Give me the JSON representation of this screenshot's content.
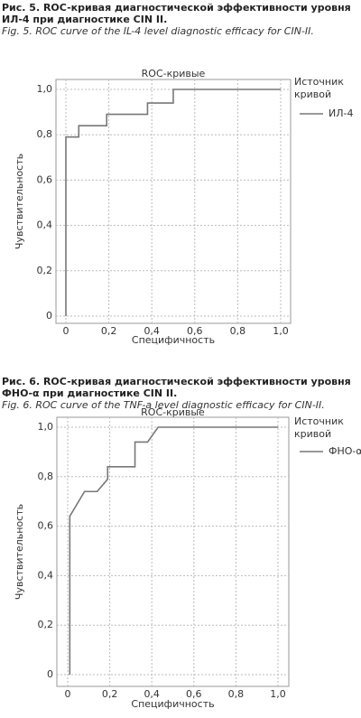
{
  "chart_data": [
    {
      "type": "line",
      "caption_ru": "Рис. 5. ROC-кривая диагностической эффективности уровня ИЛ-4 при диагностике CIN II.",
      "caption_en": "Fig. 5. ROC curve of the IL-4 level diagnostic efficacy for CIN-II.",
      "title": "ROC-кривые",
      "xlabel": "Специфичность",
      "ylabel": "Чувствительность",
      "legend_title": "Источник кривой",
      "xlim": [
        0,
        1
      ],
      "ylim": [
        0,
        1
      ],
      "xticks": [
        0,
        {
          "value": 0.2,
          "label": "0,2"
        },
        {
          "value": 0.4,
          "label": "0,4"
        },
        {
          "value": 0.6,
          "label": "0,6"
        },
        {
          "value": 0.8,
          "label": "0,8"
        },
        {
          "value": 1,
          "label": "1,0"
        }
      ],
      "yticks": [
        0,
        {
          "value": 0.2,
          "label": "0,2"
        },
        {
          "value": 0.4,
          "label": "0,4"
        },
        {
          "value": 0.6,
          "label": "0,6"
        },
        {
          "value": 0.8,
          "label": "0,8"
        },
        {
          "value": 1,
          "label": "1,0"
        }
      ],
      "grid": true,
      "series": [
        {
          "name": "ИЛ-4",
          "color": "#777777",
          "x": [
            0,
            0,
            0.06,
            0.06,
            0.19,
            0.19,
            0.38,
            0.38,
            0.5,
            0.5,
            1
          ],
          "values": [
            0,
            0.79,
            0.79,
            0.84,
            0.84,
            0.89,
            0.89,
            0.94,
            0.94,
            1,
            1
          ]
        }
      ]
    },
    {
      "type": "line",
      "caption_ru": "Рис. 6. ROC-кривая диагностической эффективности уровня ФНО-α при диагностике CIN II.",
      "caption_en": "Fig. 6. ROC curve of the TNF-a level diagnostic efficacy for CIN-II.",
      "title": "ROC-кривые",
      "xlabel": "Специфичность",
      "ylabel": "Чувствительность",
      "legend_title": "Источник кривой",
      "xlim": [
        0,
        1
      ],
      "ylim": [
        0,
        1
      ],
      "xticks": [
        0,
        {
          "value": 0.2,
          "label": "0,2"
        },
        {
          "value": 0.4,
          "label": "0,4"
        },
        {
          "value": 0.6,
          "label": "0,6"
        },
        {
          "value": 0.8,
          "label": "0,8"
        },
        {
          "value": 1,
          "label": "1,0"
        }
      ],
      "yticks": [
        0,
        {
          "value": 0.2,
          "label": "0,2"
        },
        {
          "value": 0.4,
          "label": "0,4"
        },
        {
          "value": 0.6,
          "label": "0,6"
        },
        {
          "value": 0.8,
          "label": "0,8"
        },
        {
          "value": 1,
          "label": "1,0"
        }
      ],
      "grid": true,
      "series": [
        {
          "name": "ФНО-α",
          "color": "#777777",
          "x": [
            0.01,
            0.01,
            0.08,
            0.14,
            0.19,
            0.19,
            0.32,
            0.32,
            0.38,
            0.43,
            1
          ],
          "values": [
            0,
            0.64,
            0.74,
            0.74,
            0.79,
            0.84,
            0.84,
            0.94,
            0.94,
            1,
            1
          ]
        }
      ]
    }
  ]
}
